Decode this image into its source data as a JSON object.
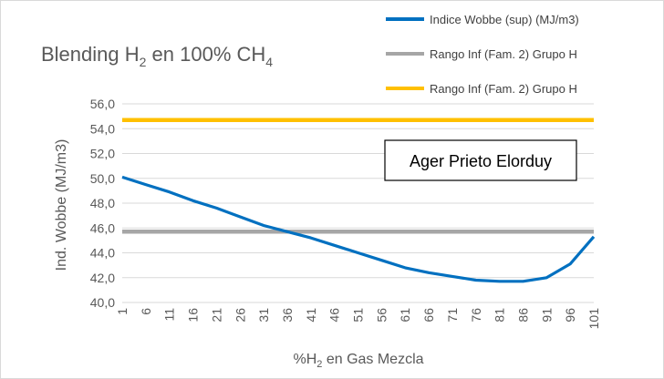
{
  "chart_data": {
    "type": "line",
    "title_parts": [
      "Blending H",
      "2",
      " en 100% CH",
      "4"
    ],
    "xlabel_parts": [
      "%H",
      "2",
      " en Gas Mezcla"
    ],
    "ylabel": "Ind. Wobbe (MJ/m3)",
    "ylim": [
      40,
      56
    ],
    "y_ticks": [
      "40,0",
      "42,0",
      "44,0",
      "46,0",
      "48,0",
      "50,0",
      "52,0",
      "54,0",
      "56,0"
    ],
    "y_tick_values": [
      40,
      42,
      44,
      46,
      48,
      50,
      52,
      54,
      56
    ],
    "x_ticks": [
      "1",
      "6",
      "11",
      "16",
      "21",
      "26",
      "31",
      "36",
      "41",
      "46",
      "51",
      "56",
      "61",
      "66",
      "71",
      "76",
      "81",
      "86",
      "91",
      "96",
      "101"
    ],
    "x_tick_values": [
      1,
      6,
      11,
      16,
      21,
      26,
      31,
      36,
      41,
      46,
      51,
      56,
      61,
      66,
      71,
      76,
      81,
      86,
      91,
      96,
      101
    ],
    "xlim": [
      1,
      101
    ],
    "grid": true,
    "legend_position": "top-right",
    "annotation": "Ager Prieto Elorduy",
    "series": [
      {
        "name": "Indice Wobbe (sup) (MJ/m3)",
        "color": "#0070c0",
        "x": [
          1,
          6,
          11,
          16,
          21,
          26,
          31,
          36,
          41,
          46,
          51,
          56,
          61,
          66,
          71,
          76,
          81,
          86,
          91,
          96,
          101
        ],
        "values": [
          50.1,
          49.5,
          48.9,
          48.2,
          47.6,
          46.9,
          46.2,
          45.7,
          45.2,
          44.6,
          44.0,
          43.4,
          42.8,
          42.4,
          42.1,
          41.8,
          41.7,
          41.7,
          42.0,
          43.1,
          45.3
        ]
      },
      {
        "name": "Rango Inf (Fam. 2) Grupo H",
        "color": "#a6a6a6",
        "x": [
          1,
          101
        ],
        "values": [
          45.7,
          45.7
        ]
      },
      {
        "name": "Rango Inf (Fam. 2) Grupo H",
        "color": "#ffc000",
        "x": [
          1,
          101
        ],
        "values": [
          54.7,
          54.7
        ]
      }
    ]
  }
}
